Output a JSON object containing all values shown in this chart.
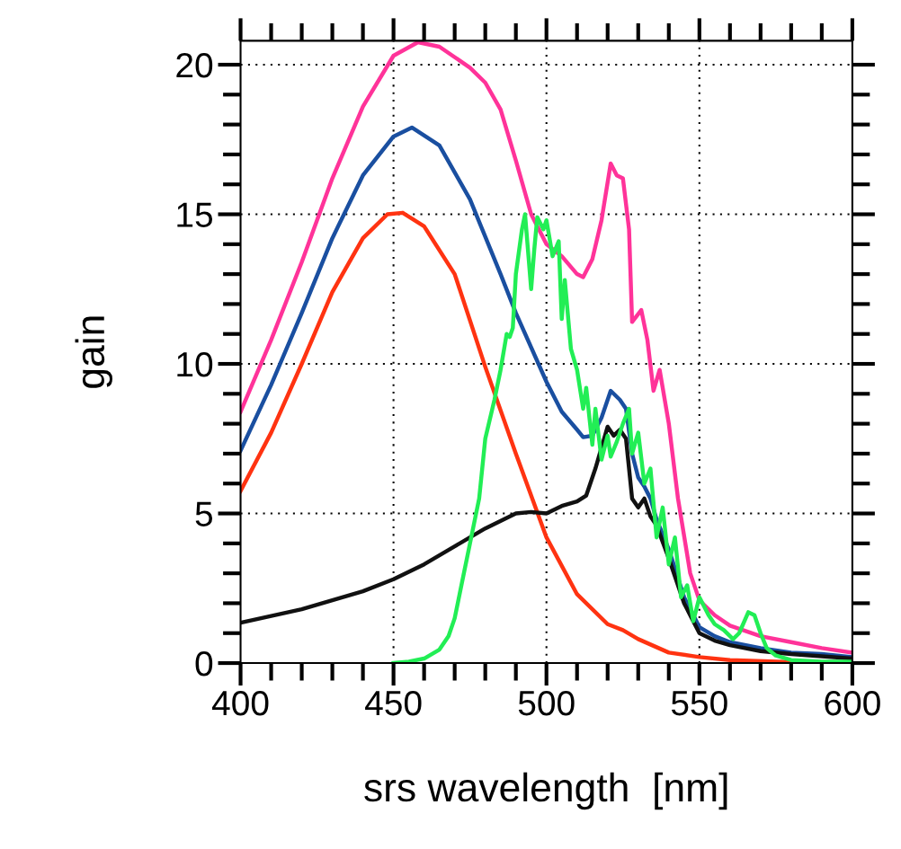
{
  "chart_data": {
    "type": "line",
    "xlabel": "srs wavelength  [nm]",
    "ylabel": "gain",
    "xlim": [
      400,
      600
    ],
    "xticks": [
      400,
      450,
      500,
      550,
      600
    ],
    "ylim": [
      0,
      20.8
    ],
    "yticks": [
      0,
      5,
      10,
      15,
      20
    ],
    "grid": true,
    "marker": "none",
    "line_style": "solid",
    "series": [
      {
        "color": "#ff3399",
        "x": [
          400,
          410,
          420,
          430,
          440,
          450,
          458,
          465,
          475,
          480,
          485,
          490,
          495,
          500,
          505,
          510,
          512,
          515,
          518,
          521,
          523,
          525,
          527,
          528,
          531,
          533,
          535,
          537,
          540,
          543,
          547,
          550,
          555,
          560,
          570,
          580,
          590,
          600
        ],
        "values": [
          8.4,
          10.8,
          13.4,
          16.2,
          18.6,
          20.3,
          20.75,
          20.6,
          19.9,
          19.4,
          18.5,
          16.8,
          15.0,
          14.0,
          13.6,
          13.0,
          12.9,
          13.5,
          14.8,
          16.7,
          16.3,
          16.2,
          14.5,
          11.4,
          11.8,
          10.8,
          9.1,
          9.8,
          8.0,
          5.5,
          3.0,
          2.1,
          1.6,
          1.25,
          0.9,
          0.7,
          0.5,
          0.35
        ]
      },
      {
        "color": "#1a4fa0",
        "x": [
          400,
          410,
          420,
          430,
          440,
          450,
          456,
          465,
          475,
          485,
          490,
          500,
          505,
          510,
          512,
          515,
          518,
          521,
          524,
          526,
          528,
          530,
          532,
          534,
          536,
          540,
          545,
          550,
          555,
          560,
          570,
          580,
          590,
          600
        ],
        "values": [
          7.1,
          9.3,
          11.7,
          14.2,
          16.3,
          17.6,
          17.9,
          17.3,
          15.5,
          13.0,
          11.7,
          9.4,
          8.4,
          7.8,
          7.55,
          7.6,
          8.2,
          9.1,
          8.8,
          8.5,
          7.0,
          6.2,
          5.9,
          5.5,
          4.8,
          3.8,
          2.2,
          1.2,
          0.9,
          0.7,
          0.5,
          0.35,
          0.3,
          0.2
        ]
      },
      {
        "color": "#ff3311",
        "x": [
          400,
          410,
          420,
          430,
          440,
          448,
          453,
          460,
          470,
          480,
          490,
          500,
          510,
          520,
          525,
          530,
          540,
          550,
          560,
          580,
          600
        ],
        "values": [
          5.75,
          7.7,
          10.0,
          12.4,
          14.2,
          15.0,
          15.05,
          14.6,
          13.0,
          9.9,
          7.0,
          4.2,
          2.3,
          1.3,
          1.1,
          0.8,
          0.35,
          0.2,
          0.1,
          0.03,
          0.0
        ]
      },
      {
        "color": "#111111",
        "x": [
          400,
          420,
          440,
          450,
          460,
          470,
          480,
          490,
          495,
          500,
          505,
          510,
          513,
          516,
          520,
          522,
          524,
          526,
          528,
          530,
          532,
          534,
          536,
          540,
          545,
          550,
          555,
          560,
          570,
          580,
          600
        ],
        "values": [
          1.35,
          1.8,
          2.4,
          2.8,
          3.3,
          3.9,
          4.5,
          5.0,
          5.05,
          5.0,
          5.25,
          5.4,
          5.6,
          6.5,
          7.9,
          7.6,
          7.8,
          7.5,
          5.5,
          5.2,
          5.5,
          4.9,
          4.6,
          3.5,
          2.0,
          1.0,
          0.75,
          0.6,
          0.4,
          0.3,
          0.15
        ]
      },
      {
        "color": "#22ee55",
        "x": [
          450,
          455,
          460,
          465,
          468,
          470,
          472,
          475,
          478,
          480,
          483,
          485,
          487,
          488,
          489,
          490,
          492,
          493,
          495,
          496,
          497,
          499,
          500,
          502,
          504,
          505,
          506,
          508,
          510,
          512,
          513,
          515,
          516,
          518,
          520,
          521,
          523,
          525,
          527,
          528,
          530,
          532,
          534,
          536,
          538,
          540,
          542,
          544,
          546,
          548,
          550,
          553,
          555,
          558,
          561,
          563,
          566,
          568,
          570,
          572,
          575,
          580,
          590,
          600
        ],
        "values": [
          0.0,
          0.05,
          0.15,
          0.45,
          0.9,
          1.5,
          2.5,
          4.0,
          5.5,
          7.5,
          8.8,
          9.8,
          11.0,
          10.9,
          11.2,
          13.0,
          14.5,
          15.0,
          12.5,
          13.8,
          14.9,
          14.5,
          14.8,
          13.6,
          14.1,
          11.5,
          12.8,
          10.5,
          9.8,
          8.5,
          9.2,
          7.3,
          8.5,
          6.8,
          7.6,
          6.9,
          7.4,
          8.0,
          8.5,
          7.0,
          7.7,
          6.0,
          6.5,
          4.2,
          5.2,
          3.3,
          4.2,
          2.2,
          2.6,
          1.4,
          2.2,
          1.6,
          1.3,
          1.1,
          0.8,
          1.0,
          1.7,
          1.6,
          1.0,
          0.5,
          0.25,
          0.1,
          0.05,
          0.05
        ]
      }
    ]
  }
}
